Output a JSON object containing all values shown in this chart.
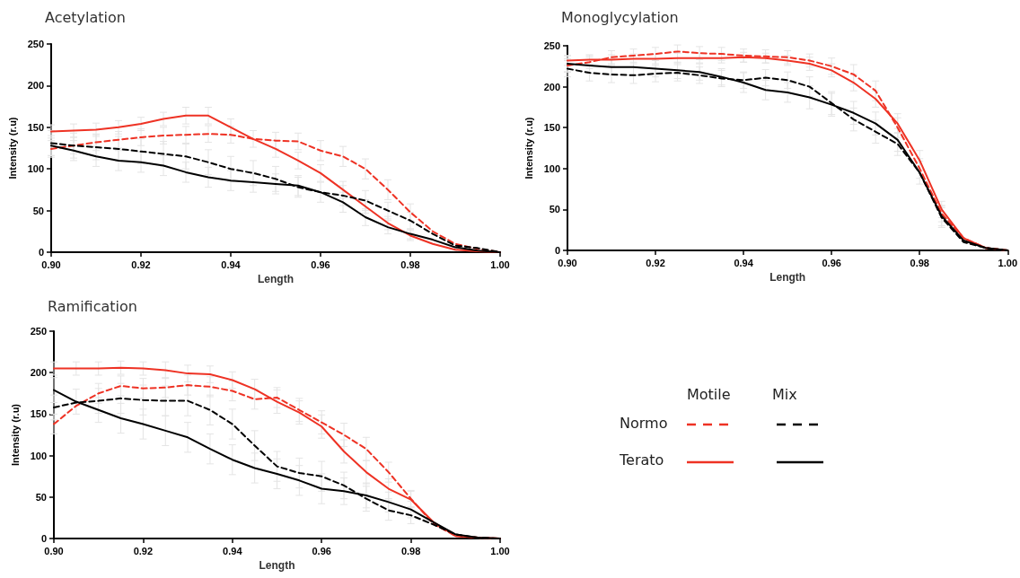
{
  "chart_data": [
    {
      "type": "line",
      "title": "Acetylation",
      "xlabel": "Length",
      "ylabel": "Intensity (r.u)",
      "x": [
        0.9,
        0.905,
        0.91,
        0.915,
        0.92,
        0.925,
        0.93,
        0.935,
        0.94,
        0.945,
        0.95,
        0.955,
        0.96,
        0.965,
        0.97,
        0.975,
        0.98,
        0.985,
        0.99,
        0.995,
        1.0
      ],
      "xlim": [
        0.9,
        1.0
      ],
      "xticks": [
        {
          "value": 0.9,
          "label": "0.90"
        },
        {
          "value": 0.92,
          "label": "0.92"
        },
        {
          "value": 0.94,
          "label": "0.94"
        },
        {
          "value": 0.96,
          "label": "0.96"
        },
        {
          "value": 0.98,
          "label": "0.98"
        },
        {
          "value": 1.0,
          "label": "1.00"
        }
      ],
      "ylim": [
        0,
        250
      ],
      "yticks": [
        0,
        50,
        100,
        150,
        200,
        250
      ],
      "grid": false,
      "marker": "none",
      "series": [
        {
          "color": "#ee3224",
          "line_style": "dashed",
          "values": [
            124,
            128,
            132,
            135,
            138,
            140,
            141,
            142,
            141,
            136,
            134,
            133,
            122,
            115,
            100,
            75,
            48,
            25,
            10,
            4,
            0
          ],
          "errors": [
            10,
            10,
            10,
            10,
            10,
            10,
            10,
            10,
            10,
            10,
            10,
            10,
            12,
            12,
            12,
            12,
            10,
            null,
            null,
            null,
            null
          ]
        },
        {
          "color": "#ee3224",
          "line_style": "solid",
          "values": [
            145,
            146,
            147,
            150,
            154,
            160,
            164,
            164,
            150,
            136,
            124,
            110,
            95,
            75,
            55,
            35,
            20,
            10,
            3,
            1,
            0
          ],
          "errors": [
            8,
            8,
            8,
            8,
            8,
            8,
            10,
            10,
            10,
            null,
            10,
            10,
            10,
            10,
            8,
            8,
            6,
            null,
            null,
            null,
            null
          ]
        },
        {
          "color": "#000000",
          "line_style": "dashed",
          "values": [
            131,
            128,
            126,
            124,
            121,
            118,
            115,
            108,
            100,
            95,
            88,
            78,
            72,
            68,
            62,
            50,
            38,
            22,
            8,
            5,
            0
          ],
          "errors": [
            15,
            15,
            15,
            15,
            15,
            15,
            15,
            15,
            15,
            15,
            15,
            12,
            12,
            12,
            12,
            10,
            10,
            null,
            null,
            null,
            null
          ]
        },
        {
          "color": "#000000",
          "line_style": "solid",
          "values": [
            128,
            122,
            115,
            110,
            108,
            104,
            96,
            90,
            86,
            84,
            82,
            80,
            72,
            60,
            42,
            30,
            22,
            15,
            6,
            2,
            0
          ],
          "errors": [
            12,
            12,
            12,
            12,
            12,
            12,
            12,
            12,
            12,
            12,
            12,
            12,
            null,
            12,
            10,
            8,
            6,
            null,
            null,
            null,
            null
          ]
        }
      ]
    },
    {
      "type": "line",
      "title": "Monoglycylation",
      "xlabel": "Length",
      "ylabel": "Intensity (r.u)",
      "x": [
        0.9,
        0.905,
        0.91,
        0.915,
        0.92,
        0.925,
        0.93,
        0.935,
        0.94,
        0.945,
        0.95,
        0.955,
        0.96,
        0.965,
        0.97,
        0.975,
        0.98,
        0.985,
        0.99,
        0.995,
        1.0
      ],
      "xlim": [
        0.9,
        1.0
      ],
      "xticks": [
        {
          "value": 0.9,
          "label": "0.90"
        },
        {
          "value": 0.92,
          "label": "0.92"
        },
        {
          "value": 0.94,
          "label": "0.94"
        },
        {
          "value": 0.96,
          "label": "0.96"
        },
        {
          "value": 0.98,
          "label": "0.98"
        },
        {
          "value": 1.0,
          "label": "1.00"
        }
      ],
      "ylim": [
        0,
        250
      ],
      "yticks": [
        0,
        50,
        100,
        150,
        200,
        250
      ],
      "grid": false,
      "marker": "none",
      "series": [
        {
          "color": "#ee3224",
          "line_style": "dashed",
          "values": [
            226,
            230,
            236,
            238,
            240,
            243,
            241,
            240,
            238,
            237,
            236,
            232,
            225,
            215,
            195,
            150,
            100,
            45,
            15,
            3,
            0
          ],
          "errors": [
            8,
            8,
            8,
            8,
            8,
            8,
            8,
            8,
            8,
            8,
            8,
            8,
            10,
            12,
            12,
            12,
            12,
            10,
            null,
            null,
            null
          ]
        },
        {
          "color": "#ee3224",
          "line_style": "solid",
          "values": [
            232,
            233,
            233,
            234,
            234,
            235,
            235,
            235,
            236,
            235,
            232,
            228,
            220,
            205,
            185,
            155,
            110,
            50,
            15,
            3,
            0
          ],
          "errors": [
            6,
            6,
            6,
            6,
            6,
            6,
            6,
            6,
            6,
            6,
            6,
            8,
            8,
            10,
            10,
            12,
            12,
            10,
            null,
            null,
            null
          ]
        },
        {
          "color": "#000000",
          "line_style": "dashed",
          "values": [
            222,
            217,
            215,
            214,
            216,
            217,
            214,
            210,
            208,
            211,
            208,
            200,
            180,
            160,
            145,
            130,
            95,
            40,
            10,
            3,
            0
          ],
          "errors": [
            10,
            10,
            10,
            10,
            10,
            10,
            10,
            10,
            10,
            10,
            10,
            12,
            14,
            14,
            14,
            14,
            14,
            12,
            null,
            null,
            null
          ]
        },
        {
          "color": "#000000",
          "line_style": "solid",
          "values": [
            228,
            226,
            224,
            224,
            222,
            220,
            218,
            212,
            205,
            196,
            193,
            187,
            178,
            168,
            155,
            135,
            95,
            42,
            12,
            3,
            0
          ],
          "errors": [
            10,
            10,
            10,
            10,
            10,
            10,
            10,
            10,
            12,
            12,
            12,
            14,
            14,
            14,
            14,
            14,
            null,
            12,
            null,
            null,
            null
          ]
        }
      ]
    },
    {
      "type": "line",
      "title": "Ramification",
      "xlabel": "Length",
      "ylabel": "Intensity (r.u)",
      "x": [
        0.9,
        0.905,
        0.91,
        0.915,
        0.92,
        0.925,
        0.93,
        0.935,
        0.94,
        0.945,
        0.95,
        0.955,
        0.96,
        0.965,
        0.97,
        0.975,
        0.98,
        0.985,
        0.99,
        0.995,
        1.0
      ],
      "xlim": [
        0.9,
        1.0
      ],
      "xticks": [
        {
          "value": 0.9,
          "label": "0.90"
        },
        {
          "value": 0.92,
          "label": "0.92"
        },
        {
          "value": 0.94,
          "label": "0.94"
        },
        {
          "value": 0.96,
          "label": "0.96"
        },
        {
          "value": 0.98,
          "label": "0.98"
        },
        {
          "value": 1.0,
          "label": "1.00"
        }
      ],
      "ylim": [
        0,
        250
      ],
      "yticks": [
        0,
        50,
        100,
        150,
        200,
        250
      ],
      "grid": false,
      "marker": "none",
      "series": [
        {
          "color": "#ee3224",
          "line_style": "dashed",
          "values": [
            138,
            160,
            175,
            184,
            181,
            182,
            185,
            183,
            178,
            168,
            170,
            155,
            140,
            125,
            108,
            80,
            48,
            18,
            3,
            1,
            0
          ],
          "errors": [
            12,
            null,
            12,
            12,
            12,
            12,
            12,
            12,
            12,
            12,
            12,
            14,
            14,
            14,
            14,
            12,
            10,
            null,
            null,
            null,
            null
          ]
        },
        {
          "color": "#ee3224",
          "line_style": "solid",
          "values": [
            205,
            205,
            205,
            206,
            205,
            203,
            199,
            198,
            191,
            180,
            165,
            152,
            135,
            105,
            80,
            60,
            47,
            20,
            3,
            1,
            0
          ],
          "errors": [
            8,
            8,
            8,
            8,
            8,
            10,
            10,
            10,
            10,
            12,
            14,
            14,
            14,
            14,
            14,
            12,
            10,
            null,
            null,
            null,
            null
          ]
        },
        {
          "color": "#000000",
          "line_style": "dashed",
          "values": [
            158,
            164,
            166,
            169,
            167,
            166,
            166,
            155,
            138,
            112,
            87,
            79,
            75,
            64,
            48,
            34,
            28,
            17,
            5,
            1,
            0
          ],
          "errors": [
            15,
            null,
            15,
            18,
            18,
            18,
            18,
            18,
            18,
            18,
            18,
            18,
            18,
            16,
            15,
            12,
            10,
            null,
            null,
            null,
            null
          ]
        },
        {
          "color": "#000000",
          "line_style": "solid",
          "values": [
            179,
            165,
            155,
            145,
            138,
            130,
            122,
            108,
            95,
            85,
            78,
            70,
            60,
            57,
            52,
            44,
            35,
            20,
            5,
            1,
            0
          ],
          "errors": [
            15,
            15,
            15,
            18,
            18,
            18,
            18,
            18,
            18,
            18,
            18,
            18,
            18,
            16,
            15,
            12,
            10,
            null,
            null,
            null,
            null
          ]
        }
      ]
    },
    {
      "type": "other",
      "annotations": [
        "Motile",
        "Mix",
        "Normo",
        "Terato"
      ]
    }
  ]
}
